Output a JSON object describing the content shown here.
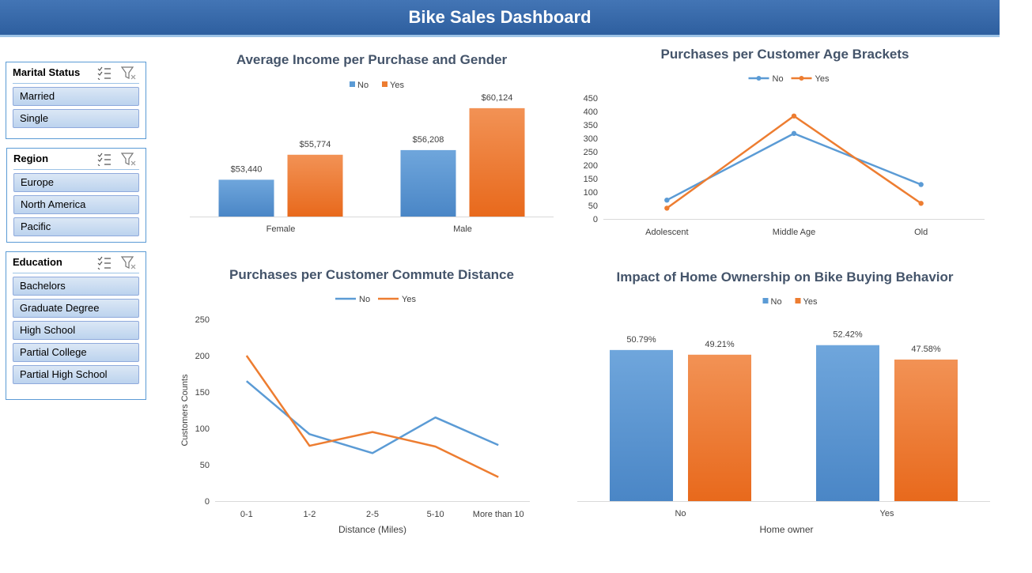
{
  "header": {
    "title": "Bike Sales Dashboard"
  },
  "slicers": {
    "marital": {
      "title": "Marital Status",
      "items": [
        "Married",
        "Single"
      ]
    },
    "region": {
      "title": "Region",
      "items": [
        "Europe",
        "North America",
        "Pacific"
      ]
    },
    "education": {
      "title": "Education",
      "items": [
        "Bachelors",
        "Graduate Degree",
        "High School",
        "Partial College",
        "Partial High School"
      ]
    }
  },
  "colors": {
    "no": "#5b9bd5",
    "yes": "#ed7d31",
    "title": "#44546a",
    "banner": "#2e5f9f"
  },
  "icons": [
    "multi-select-icon",
    "clear-filter-icon"
  ],
  "chart_data": [
    {
      "id": "income",
      "type": "bar",
      "title": "Average Income per Purchase and Gender",
      "categories": [
        "Female",
        "Male"
      ],
      "series": [
        {
          "name": "No",
          "values": [
            53440,
            56208
          ],
          "labels": [
            "$53,440",
            "$56,208"
          ]
        },
        {
          "name": "Yes",
          "values": [
            55774,
            60124
          ],
          "labels": [
            "$55,774",
            "$60,124"
          ]
        }
      ],
      "ylim": [
        50000,
        61000
      ],
      "legend": "top"
    },
    {
      "id": "age",
      "type": "line",
      "title": "Purchases per Customer Age Brackets",
      "categories": [
        "Adolescent",
        "Middle Age",
        "Old"
      ],
      "series": [
        {
          "name": "No",
          "values": [
            70,
            318,
            128
          ]
        },
        {
          "name": "Yes",
          "values": [
            40,
            383,
            58
          ]
        }
      ],
      "yticks": [
        0,
        50,
        100,
        150,
        200,
        250,
        300,
        350,
        400,
        450
      ],
      "ylim": [
        0,
        450
      ],
      "markers": true,
      "legend": "top"
    },
    {
      "id": "commute",
      "type": "line",
      "title": "Purchases per Customer Commute Distance",
      "categories": [
        "0-1",
        "1-2",
        "2-5",
        "5-10",
        "More than 10"
      ],
      "series": [
        {
          "name": "No",
          "values": [
            165,
            92,
            66,
            115,
            77
          ]
        },
        {
          "name": "Yes",
          "values": [
            200,
            76,
            95,
            75,
            33
          ]
        }
      ],
      "yticks": [
        0,
        50,
        100,
        150,
        200,
        250
      ],
      "ylim": [
        0,
        250
      ],
      "xlabel": "Distance (Miles)",
      "ylabel": "Customers Counts",
      "markers": false,
      "legend": "top"
    },
    {
      "id": "home",
      "type": "bar",
      "title": "Impact of Home Ownership on Bike Buying Behavior",
      "categories": [
        "No",
        "Yes"
      ],
      "series": [
        {
          "name": "No",
          "values": [
            50.79,
            52.42
          ],
          "labels": [
            "50.79%",
            "52.42%"
          ]
        },
        {
          "name": "Yes",
          "values": [
            49.21,
            47.58
          ],
          "labels": [
            "49.21%",
            "47.58%"
          ]
        }
      ],
      "ylim": [
        0,
        55
      ],
      "xlabel": "Home owner",
      "legend": "top"
    }
  ]
}
